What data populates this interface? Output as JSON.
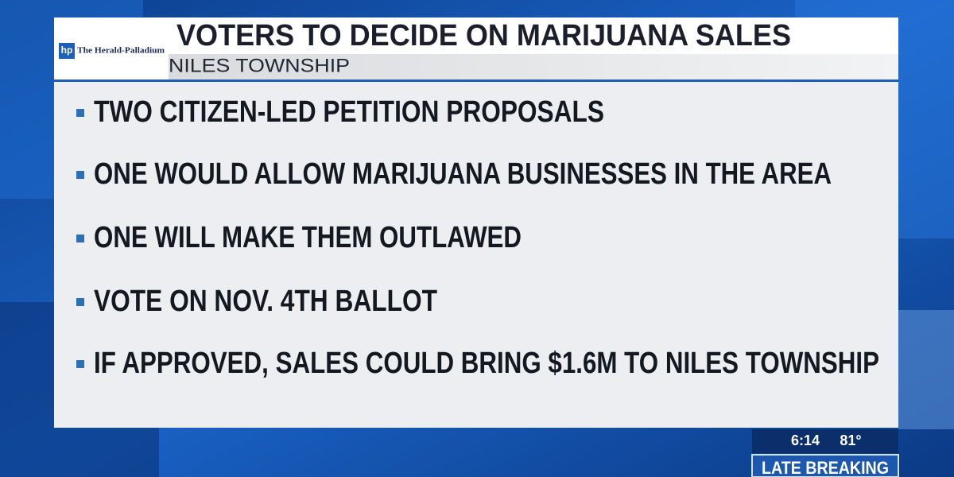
{
  "header": {
    "logo_mark": "hp",
    "logo": "The Herald-Palladium",
    "title": "VOTERS TO DECIDE ON MARIJUANA SALES",
    "subtitle": "NILES TOWNSHIP"
  },
  "bullets": [
    "TWO CITIZEN-LED PETITION PROPOSALS",
    "ONE WOULD ALLOW MARIJUANA BUSINESSES IN THE AREA",
    "ONE WILL MAKE THEM OUTLAWED",
    "VOTE ON NOV. 4TH BALLOT",
    "IF APPROVED, SALES COULD BRING $1.6M TO NILES TOWNSHIP"
  ],
  "ticker": {
    "time": "6:14",
    "temperature": "81°",
    "label": "LATE BREAKING"
  }
}
